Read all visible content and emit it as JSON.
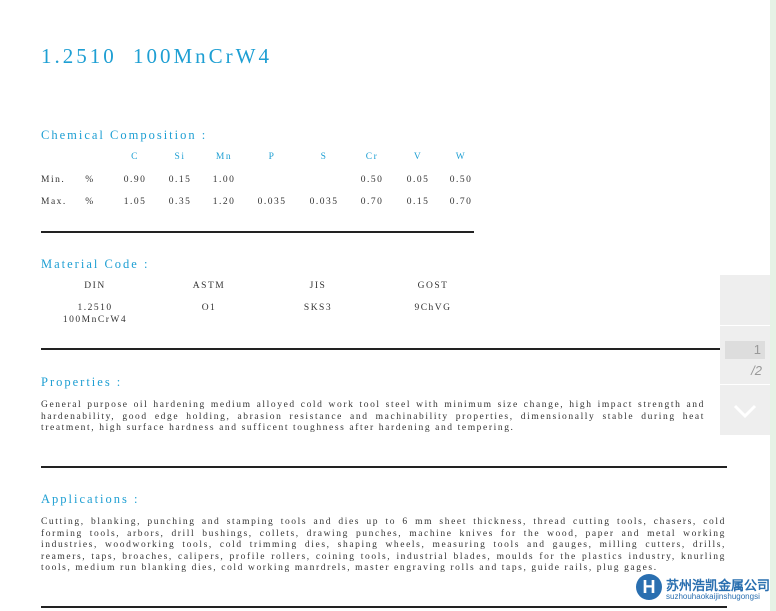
{
  "title": "1.2510 100MnCrW4",
  "chem": {
    "heading": "Chemical Composition :",
    "elements": [
      "C",
      "Si",
      "Mn",
      "P",
      "S",
      "Cr",
      "V",
      "W"
    ],
    "rows": [
      {
        "label": "Min.",
        "unit": "%",
        "values": [
          "0.90",
          "0.15",
          "1.00",
          "",
          "",
          "0.50",
          "0.05",
          "0.50"
        ]
      },
      {
        "label": "Max.",
        "unit": "%",
        "values": [
          "1.05",
          "0.35",
          "1.20",
          "0.035",
          "0.035",
          "0.70",
          "0.15",
          "0.70"
        ]
      }
    ]
  },
  "codes": {
    "heading": "Material Code :",
    "standards": [
      {
        "name": "DIN",
        "value": "1.2510",
        "value2": "100MnCrW4"
      },
      {
        "name": "ASTM",
        "value": "O1"
      },
      {
        "name": "JIS",
        "value": "SKS3"
      },
      {
        "name": "GOST",
        "value": "9ChVG"
      }
    ]
  },
  "properties": {
    "heading": "Properties :",
    "text": "General purpose oil hardening medium alloyed cold work tool steel with minimum size change, high impact strength and hardenability, good edge holding, abrasion resistance and machinability properties, dimensionally stable during heat treatment, high surface hardness and sufficent toughness after hardening and tempering."
  },
  "applications": {
    "heading": "Applications :",
    "text": "Cutting, blanking, punching and stamping tools and dies up to 6 mm sheet thickness, thread cutting tools, chasers, cold forming tools, arbors, drill bushings, collets, drawing punches, machine knives for the wood, paper and metal working industries, woodworking tools, cold trimming dies, shaping wheels, measuring tools and gauges, milling cutters, drills, reamers, taps, broaches, calipers, profile rollers, coining tools, industrial blades, moulds for the plastics industry, knurling tools, medium run blanking dies, cold working manrdrels, master engraving rolls and taps, guide rails, plug gages."
  },
  "pager": {
    "current": "1",
    "total": "/2"
  },
  "watermark": {
    "name": "苏州浩凯金属公司",
    "pinyin": "suzhouhaokaijinshugongsi",
    "letter": "H"
  }
}
